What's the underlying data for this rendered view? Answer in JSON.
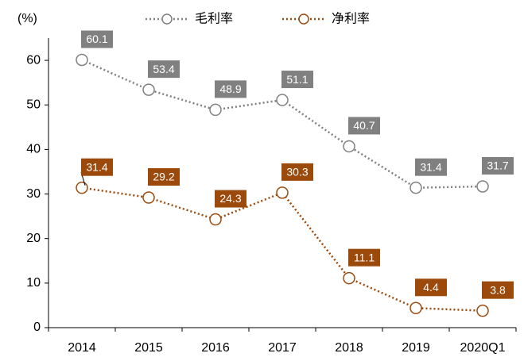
{
  "chart_data": {
    "type": "line",
    "y_label": "(%)",
    "categories": [
      "2014",
      "2015",
      "2016",
      "2017",
      "2018",
      "2019",
      "2020Q1"
    ],
    "series": [
      {
        "name": "毛利率",
        "color": "#808080",
        "values": [
          60.1,
          53.4,
          48.9,
          51.1,
          40.7,
          31.4,
          31.7
        ]
      },
      {
        "name": "净利率",
        "color": "#9c4a0c",
        "values": [
          31.4,
          29.2,
          24.3,
          30.3,
          11.1,
          4.4,
          3.8
        ]
      }
    ],
    "ylim": [
      0,
      65
    ],
    "yticks": [
      0,
      10,
      20,
      30,
      40,
      50,
      60
    ],
    "grid": false,
    "legend": "top"
  }
}
